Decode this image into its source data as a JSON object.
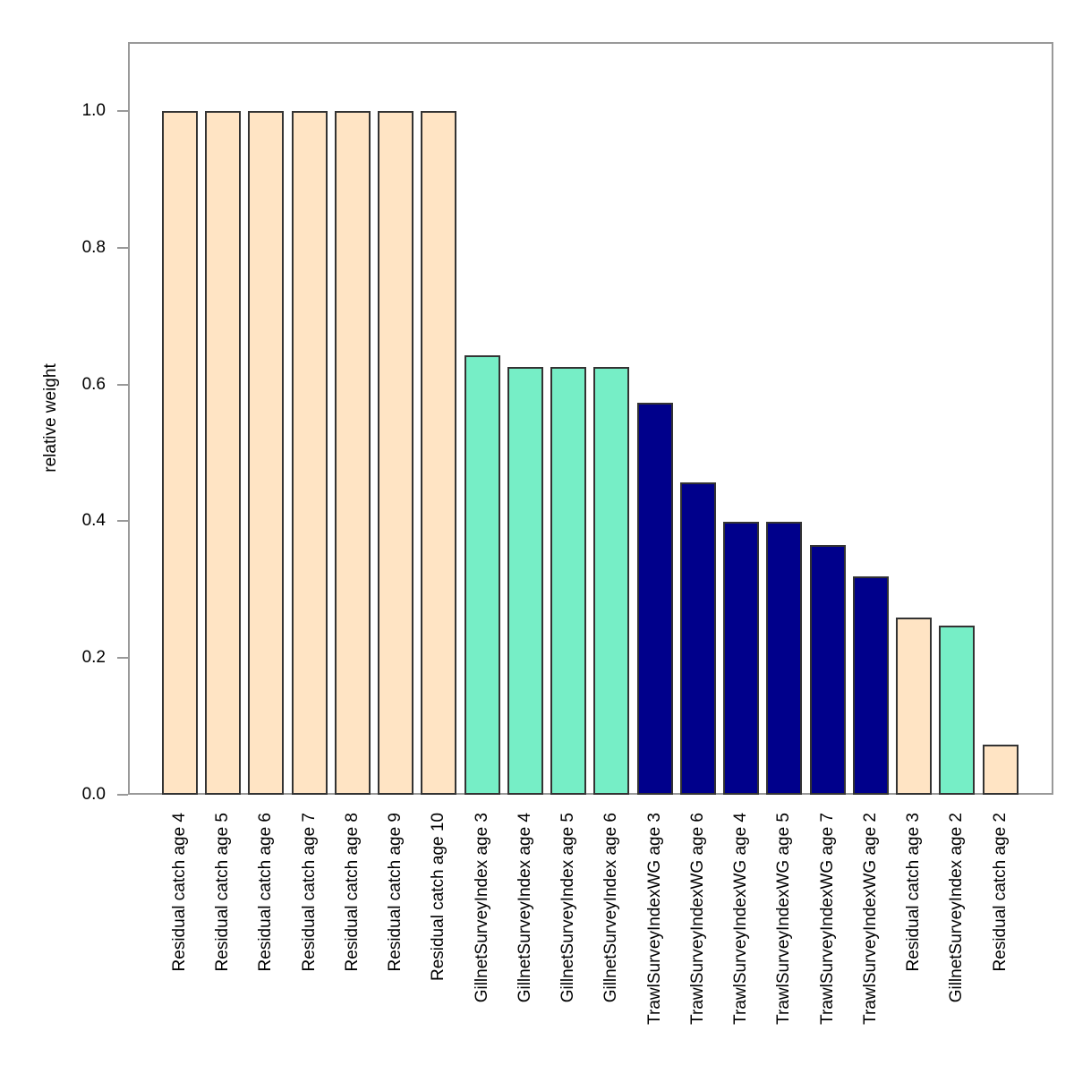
{
  "chart_data": {
    "type": "bar",
    "title": "",
    "xlabel": "",
    "ylabel": "relative weight",
    "ylim": [
      0,
      1.1
    ],
    "yticks": [
      "0.0",
      "0.2",
      "0.4",
      "0.6",
      "0.8",
      "1.0"
    ],
    "grid": false,
    "legend_position": "none",
    "categories": [
      "Residual catch age 4",
      "Residual catch age 5",
      "Residual catch age 6",
      "Residual catch age 7",
      "Residual catch age 8",
      "Residual catch age 9",
      "Residual catch age 10",
      "GillnetSurveyIndex age 3",
      "GillnetSurveyIndex age 4",
      "GillnetSurveyIndex age 5",
      "GillnetSurveyIndex age 6",
      "TrawlSurveyIndexWG age 3",
      "TrawlSurveyIndexWG age 6",
      "TrawlSurveyIndexWG age 4",
      "TrawlSurveyIndexWG age 5",
      "TrawlSurveyIndexWG age 7",
      "TrawlSurveyIndexWG age 2",
      "Residual catch age 3",
      "GillnetSurveyIndex age 2",
      "Residual catch age 2"
    ],
    "values": [
      1.0,
      1.0,
      1.0,
      1.0,
      1.0,
      1.0,
      1.0,
      0.643,
      0.626,
      0.626,
      0.626,
      0.573,
      0.457,
      0.399,
      0.399,
      0.365,
      0.319,
      0.259,
      0.247,
      0.073
    ],
    "group_colors": {
      "Residual catch": "#FFE4C4",
      "GillnetSurveyIndex": "#76EEC6",
      "TrawlSurveyIndexWG": "#00008B"
    },
    "bar_colors": [
      "#FFE4C4",
      "#FFE4C4",
      "#FFE4C4",
      "#FFE4C4",
      "#FFE4C4",
      "#FFE4C4",
      "#FFE4C4",
      "#76EEC6",
      "#76EEC6",
      "#76EEC6",
      "#76EEC6",
      "#00008B",
      "#00008B",
      "#00008B",
      "#00008B",
      "#00008B",
      "#00008B",
      "#FFE4C4",
      "#76EEC6",
      "#FFE4C4"
    ],
    "bar_border_color": "#333333",
    "frame_color": "#999999",
    "background_color": "#FFFFFF",
    "text_color": "#000000"
  }
}
